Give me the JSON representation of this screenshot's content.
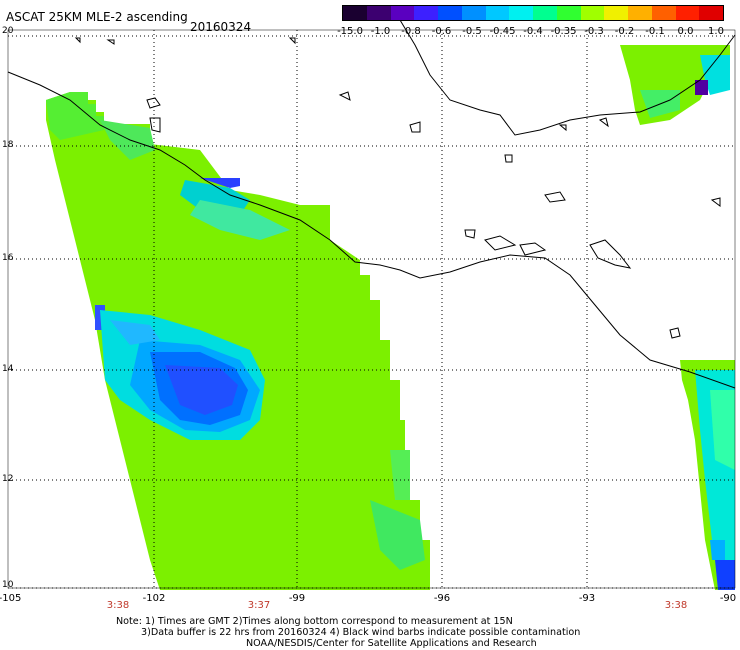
{
  "title": "ASCAT 25KM MLE-2 ascending",
  "date": "20160324",
  "colorbar": {
    "labels": [
      "-15.0",
      "-1.0",
      "-0.8",
      "-0.6",
      "-0.5",
      "-0.45",
      "-0.4",
      "-0.35",
      "-0.3",
      "-0.2",
      "-0.1",
      "0.0",
      "1.0"
    ],
    "colors": [
      "#1a0030",
      "#3c0070",
      "#5a00c0",
      "#3d20ff",
      "#0050ff",
      "#0090ff",
      "#00c8ff",
      "#00f0f0",
      "#00ff90",
      "#30ff30",
      "#a0ff00",
      "#f0f000",
      "#ffb000",
      "#ff6000",
      "#ff2000",
      "#e00000"
    ]
  },
  "lat_labels": [
    "20",
    "18",
    "16",
    "14",
    "12",
    "10"
  ],
  "lon_labels": [
    "-105",
    "-102",
    "-99",
    "-96",
    "-93",
    "-90"
  ],
  "time_labels": [
    "3:38",
    "3:37",
    "3:38"
  ],
  "notes": [
    "Note: 1) Times are GMT 2)Times along bottom correspond to measurement at 15N",
    "3)Data buffer is 22 hrs from 20160324 4) Black wind barbs indicate possible contamination",
    "NOAA/NESDIS/Center for Satellite Applications and Research"
  ]
}
